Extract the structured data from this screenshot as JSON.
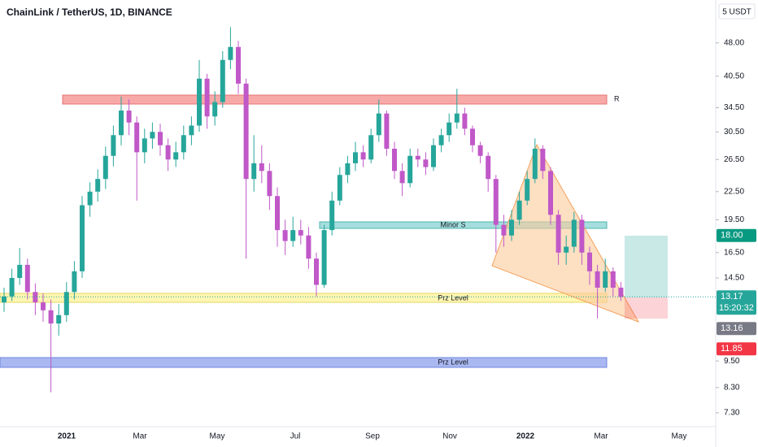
{
  "chart_data": {
    "type": "candlestick",
    "title": "ChainLink / TetherUS, 1D, BINANCE",
    "currency": "5 USDT",
    "log_scale": true,
    "grid": false,
    "up_color": "#26a69a",
    "down_color": "#c058c8",
    "ylim": [
      6.8,
      59.7
    ],
    "yticks": [
      {
        "value": 48,
        "label": "48.00"
      },
      {
        "value": 40.5,
        "label": "40.50"
      },
      {
        "value": 34.5,
        "label": "34.50"
      },
      {
        "value": 30.5,
        "label": "30.50"
      },
      {
        "value": 26.5,
        "label": "26.50"
      },
      {
        "value": 22.5,
        "label": "22.50"
      },
      {
        "value": 19.5,
        "label": "19.50"
      },
      {
        "value": 16.5,
        "label": "16.50"
      },
      {
        "value": 14.5,
        "label": "14.50"
      },
      {
        "value": 9.5,
        "label": "9.50"
      },
      {
        "value": 8.3,
        "label": "8.30"
      },
      {
        "value": 7.3,
        "label": "7.30"
      }
    ],
    "x_labels": [
      "2021",
      "Mar",
      "May",
      "Jul",
      "Sep",
      "Nov",
      "2022",
      "Mar",
      "May"
    ],
    "candles": [
      [
        12.8,
        13.8,
        12.2,
        13.2
      ],
      [
        13.2,
        15.2,
        12.9,
        14.5
      ],
      [
        14.5,
        16.9,
        14.0,
        15.5
      ],
      [
        15.5,
        16.0,
        13.0,
        13.5
      ],
      [
        13.5,
        14.1,
        12.0,
        12.8
      ],
      [
        12.8,
        13.4,
        11.6,
        12.3
      ],
      [
        12.3,
        13.0,
        8.1,
        11.5
      ],
      [
        11.5,
        12.7,
        10.8,
        12.0
      ],
      [
        12.0,
        14.2,
        11.6,
        13.5
      ],
      [
        13.5,
        15.8,
        13.0,
        15.0
      ],
      [
        15.0,
        22.0,
        14.5,
        21.0
      ],
      [
        21.0,
        23.6,
        19.8,
        22.5
      ],
      [
        22.5,
        25.2,
        21.4,
        24.0
      ],
      [
        24.0,
        28.3,
        22.8,
        27.0
      ],
      [
        27.0,
        31.5,
        25.6,
        30.0
      ],
      [
        30.0,
        36.5,
        28.5,
        34.0
      ],
      [
        34.0,
        36.0,
        30.0,
        32.0
      ],
      [
        32.0,
        33.0,
        21.5,
        27.5
      ],
      [
        27.5,
        31.0,
        26.0,
        29.5
      ],
      [
        29.5,
        32.0,
        28.0,
        30.5
      ],
      [
        30.5,
        31.8,
        27.0,
        28.5
      ],
      [
        28.5,
        29.5,
        25.0,
        26.5
      ],
      [
        26.5,
        29.0,
        25.5,
        27.5
      ],
      [
        27.5,
        31.5,
        26.5,
        30.0
      ],
      [
        30.0,
        33.0,
        28.5,
        31.5
      ],
      [
        31.5,
        44.0,
        30.5,
        40.0
      ],
      [
        40.0,
        41.0,
        31.0,
        33.0
      ],
      [
        33.0,
        37.5,
        31.5,
        35.5
      ],
      [
        35.5,
        46.0,
        34.5,
        44.0
      ],
      [
        44.0,
        52.0,
        42.0,
        47.0
      ],
      [
        47.0,
        48.5,
        37.0,
        39.0
      ],
      [
        39.0,
        40.0,
        16.0,
        24.0
      ],
      [
        24.0,
        30.0,
        22.5,
        26.0
      ],
      [
        26.0,
        28.5,
        23.5,
        25.0
      ],
      [
        25.0,
        26.0,
        20.5,
        22.0
      ],
      [
        22.0,
        23.0,
        17.0,
        18.5
      ],
      [
        18.5,
        19.5,
        16.3,
        17.5
      ],
      [
        17.5,
        19.8,
        17.0,
        18.5
      ],
      [
        18.5,
        19.5,
        17.2,
        18.0
      ],
      [
        18.0,
        18.8,
        15.2,
        16.0
      ],
      [
        16.0,
        16.5,
        13.2,
        14.0
      ],
      [
        14.0,
        19.0,
        13.8,
        18.5
      ],
      [
        18.5,
        22.5,
        18.0,
        21.5
      ],
      [
        21.5,
        25.5,
        21.0,
        24.5
      ],
      [
        24.5,
        27.0,
        23.5,
        26.0
      ],
      [
        26.0,
        29.0,
        25.0,
        27.5
      ],
      [
        27.5,
        28.5,
        25.5,
        26.5
      ],
      [
        26.5,
        31.0,
        26.0,
        30.0
      ],
      [
        30.0,
        36.0,
        29.0,
        33.5
      ],
      [
        33.5,
        34.0,
        27.0,
        28.0
      ],
      [
        28.0,
        29.0,
        24.0,
        25.0
      ],
      [
        25.0,
        26.0,
        22.0,
        23.5
      ],
      [
        23.5,
        28.0,
        23.0,
        27.0
      ],
      [
        27.0,
        28.0,
        25.5,
        26.5
      ],
      [
        26.5,
        27.5,
        24.5,
        25.5
      ],
      [
        25.5,
        29.5,
        25.0,
        28.5
      ],
      [
        28.5,
        31.0,
        27.5,
        30.0
      ],
      [
        30.0,
        33.5,
        29.0,
        32.0
      ],
      [
        32.0,
        38.0,
        31.0,
        33.5
      ],
      [
        33.5,
        34.5,
        30.0,
        31.0
      ],
      [
        31.0,
        31.5,
        27.5,
        28.5
      ],
      [
        28.5,
        29.0,
        26.0,
        27.0
      ],
      [
        27.0,
        27.5,
        22.5,
        24.0
      ],
      [
        24.0,
        24.5,
        16.5,
        19.0
      ],
      [
        19.0,
        20.0,
        17.0,
        18.0
      ],
      [
        18.0,
        20.5,
        17.5,
        19.5
      ],
      [
        19.5,
        22.5,
        19.0,
        21.5
      ],
      [
        21.5,
        25.0,
        21.0,
        24.0
      ],
      [
        24.0,
        29.5,
        23.5,
        28.0
      ],
      [
        28.0,
        28.5,
        24.0,
        25.0
      ],
      [
        25.0,
        25.5,
        19.0,
        20.0
      ],
      [
        20.0,
        20.5,
        15.5,
        16.5
      ],
      [
        16.5,
        18.0,
        15.5,
        17.0
      ],
      [
        17.0,
        20.3,
        16.5,
        19.5
      ],
      [
        19.5,
        20.0,
        15.5,
        16.5
      ],
      [
        16.5,
        17.0,
        14.0,
        15.0
      ],
      [
        15.0,
        15.5,
        11.8,
        13.8
      ],
      [
        13.8,
        16.0,
        13.5,
        15.0
      ],
      [
        15.0,
        15.3,
        13.2,
        13.8
      ],
      [
        13.8,
        14.2,
        12.9,
        13.17
      ]
    ],
    "zones": [
      {
        "label": "R"
      },
      {
        "label": "Minor S"
      },
      {
        "label": "Prz Level"
      },
      {
        "label": "Prz Level"
      }
    ],
    "price_tags": [
      {
        "value": 18,
        "label": "18.00",
        "color": "#089981"
      },
      {
        "value": 13.17,
        "label": "13.17",
        "color": "#26a69a"
      },
      {
        "value": 13.16,
        "label": "13.16",
        "color": "#787b86"
      },
      {
        "value": 11.85,
        "label": "11.85",
        "color": "#f23645"
      }
    ],
    "countdown": "15:20:32"
  }
}
